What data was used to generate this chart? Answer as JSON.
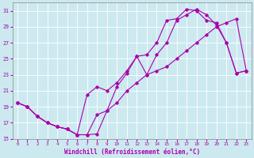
{
  "xlabel": "Windchill (Refroidissement éolien,°C)",
  "xlim": [
    -0.5,
    23.5
  ],
  "ylim": [
    15,
    32
  ],
  "xticks": [
    0,
    1,
    2,
    3,
    4,
    5,
    6,
    7,
    8,
    9,
    10,
    11,
    12,
    13,
    14,
    15,
    16,
    17,
    18,
    19,
    20,
    21,
    22,
    23
  ],
  "yticks": [
    15,
    17,
    19,
    21,
    23,
    25,
    27,
    29,
    31
  ],
  "bg_color": "#cce9f0",
  "line_color": "#aa00aa",
  "grid_color": "#ffffff",
  "line1_x": [
    0,
    1,
    2,
    3,
    4,
    5,
    6,
    7,
    8,
    9,
    10,
    11,
    12,
    13,
    14,
    15,
    16,
    17,
    18,
    19,
    20,
    21,
    22,
    23
  ],
  "line1_y": [
    19.5,
    19.0,
    17.8,
    17.0,
    16.5,
    16.2,
    15.5,
    15.5,
    15.6,
    18.5,
    19.5,
    21.0,
    22.0,
    23.0,
    23.5,
    24.0,
    25.0,
    26.0,
    27.0,
    28.0,
    29.0,
    29.5,
    30.0,
    23.5
  ],
  "line2_x": [
    0,
    1,
    2,
    3,
    4,
    5,
    6,
    7,
    8,
    9,
    10,
    11,
    12,
    13,
    14,
    15,
    16,
    17,
    18,
    19,
    20,
    21,
    22,
    23
  ],
  "line2_y": [
    19.5,
    19.0,
    17.8,
    17.0,
    16.5,
    16.2,
    15.5,
    15.5,
    18.0,
    18.5,
    21.5,
    23.2,
    25.3,
    23.0,
    25.5,
    27.0,
    29.8,
    30.5,
    31.2,
    30.5,
    29.2,
    27.0,
    23.2,
    23.5
  ],
  "line3_x": [
    0,
    1,
    2,
    3,
    4,
    5,
    6,
    7,
    8,
    9,
    10,
    11,
    12,
    13,
    14,
    15,
    16,
    17,
    18,
    19,
    20,
    21,
    22,
    23
  ],
  "line3_y": [
    19.5,
    19.0,
    17.8,
    17.0,
    16.5,
    16.2,
    15.5,
    20.5,
    21.5,
    21.0,
    22.0,
    23.5,
    25.3,
    25.5,
    27.0,
    29.8,
    30.0,
    31.2,
    31.0,
    29.8,
    29.5,
    27.0,
    23.2,
    23.5
  ]
}
